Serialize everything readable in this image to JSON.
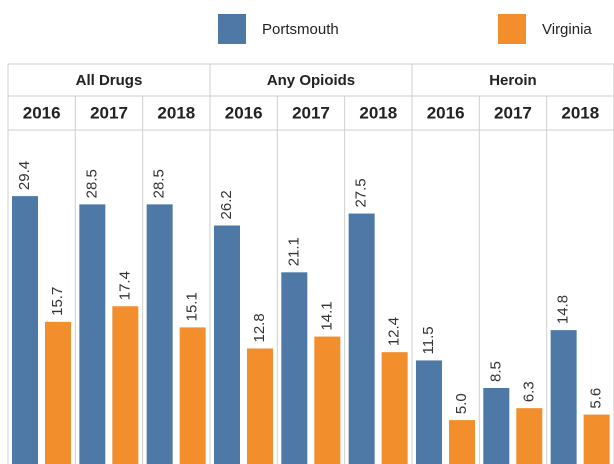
{
  "chart_data": {
    "type": "bar",
    "groups": [
      {
        "name": "All Drugs",
        "categories": [
          "2016",
          "2017",
          "2018"
        ]
      },
      {
        "name": "Any Opioids",
        "categories": [
          "2016",
          "2017",
          "2018"
        ]
      },
      {
        "name": "Heroin",
        "categories": [
          "2016",
          "2017",
          "2018"
        ]
      }
    ],
    "series": [
      {
        "name": "Portsmouth",
        "color": "#4e79a7",
        "values": [
          29.4,
          28.5,
          28.5,
          26.2,
          21.1,
          27.5,
          11.5,
          8.5,
          14.8
        ],
        "value_labels": [
          "29.4",
          "28.5",
          "28.5",
          "26.2",
          "21.1",
          "27.5",
          "11.5",
          "8.5",
          "14.8"
        ]
      },
      {
        "name": "Virginia",
        "color": "#f28e2b",
        "values": [
          15.7,
          17.4,
          15.1,
          12.8,
          14.1,
          12.4,
          5.0,
          6.3,
          5.6
        ],
        "value_labels": [
          "15.7",
          "17.4",
          "15.1",
          "12.8",
          "14.1",
          "12.4",
          "5.0",
          "6.3",
          "5.6"
        ]
      }
    ]
  }
}
